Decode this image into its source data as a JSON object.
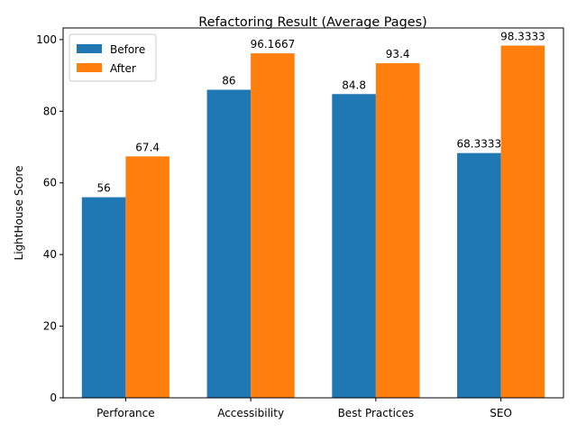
{
  "chart_data": {
    "type": "bar",
    "title": "Refactoring Result (Average Pages)",
    "xlabel": "",
    "ylabel": "LightHouse Score",
    "categories": [
      "Perforance",
      "Accessibility",
      "Best Practices",
      "SEO"
    ],
    "series": [
      {
        "name": "Before",
        "values": [
          56,
          86,
          84.8,
          68.3333
        ],
        "labels": [
          "56",
          "86",
          "84.8",
          "68.3333"
        ],
        "color": "#1f77b4"
      },
      {
        "name": "After",
        "values": [
          67.4,
          96.1667,
          93.4,
          98.3333
        ],
        "labels": [
          "67.4",
          "96.1667",
          "93.4",
          "98.3333"
        ],
        "color": "#ff7f0e"
      }
    ],
    "ylim": [
      0,
      103.25
    ],
    "yticks": [
      0,
      20,
      40,
      60,
      80,
      100
    ],
    "grid": false,
    "legend": "top-left"
  }
}
